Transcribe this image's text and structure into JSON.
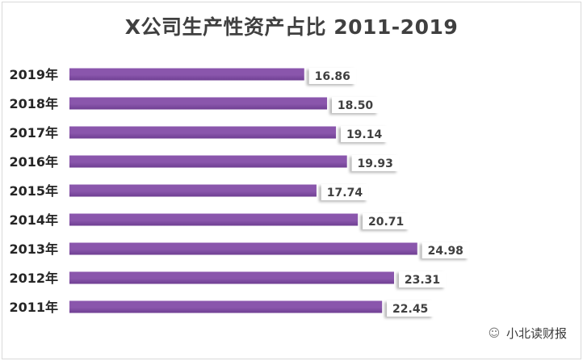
{
  "chart_data": {
    "type": "bar",
    "orientation": "horizontal",
    "title": "X公司生产性资产占比 2011-2019",
    "categories": [
      "2019年",
      "2018年",
      "2017年",
      "2016年",
      "2015年",
      "2014年",
      "2013年",
      "2012年",
      "2011年"
    ],
    "values": [
      16.86,
      18.5,
      19.14,
      19.93,
      17.74,
      20.71,
      24.98,
      23.31,
      22.45
    ],
    "value_labels": [
      "16.86",
      "18.50",
      "19.14",
      "19.93",
      "17.74",
      "20.71",
      "24.98",
      "23.31",
      "22.45"
    ],
    "xlim": [
      0,
      30.5
    ],
    "xlabel": "",
    "ylabel": "",
    "grid": false,
    "bar_color": "#8a56ac",
    "bar_color_dark": "#6f3f92"
  },
  "watermark": {
    "text": "小北读财报",
    "icon": "wechat-icon"
  }
}
